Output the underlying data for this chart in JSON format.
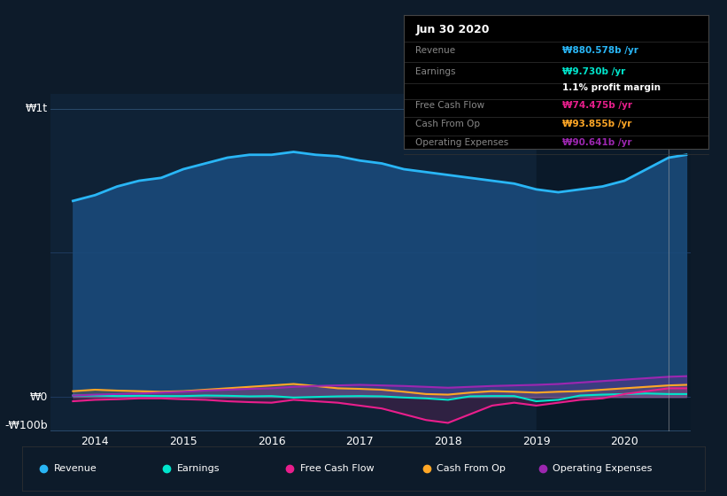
{
  "background_color": "#0d1b2a",
  "plot_bg_color": "#0f2236",
  "plot_bg_dark": "#0a1929",
  "grid_color": "#1e3a5f",
  "title_box_bg": "#000000",
  "title_box_title": "Jun 30 2020",
  "ylabel_1t": "₩1t",
  "ylabel_0": "₩0",
  "ylabel_neg100b": "-₩100b",
  "xlabel_labels": [
    "2014",
    "2015",
    "2016",
    "2017",
    "2018",
    "2019",
    "2020"
  ],
  "xmin": 2013.5,
  "xmax": 2020.75,
  "ymin": -120,
  "ymax": 1050,
  "revenue_color": "#29b6f6",
  "earnings_color": "#00e5cc",
  "fcf_color": "#e91e8c",
  "cashfromop_color": "#ffa726",
  "opex_color": "#9c27b0",
  "revenue_fill_color": "#1a4a7a",
  "legend_items": [
    "Revenue",
    "Earnings",
    "Free Cash Flow",
    "Cash From Op",
    "Operating Expenses"
  ],
  "legend_colors": [
    "#29b6f6",
    "#00e5cc",
    "#e91e8c",
    "#ffa726",
    "#9c27b0"
  ],
  "tooltip_revenue_color": "#29b6f6",
  "tooltip_earnings_color": "#00e5cc",
  "tooltip_fcf_color": "#e91e8c",
  "tooltip_cashop_color": "#ffa726",
  "tooltip_opex_color": "#9c27b0",
  "revenue_x": [
    2013.75,
    2014.0,
    2014.25,
    2014.5,
    2014.75,
    2015.0,
    2015.25,
    2015.5,
    2015.75,
    2016.0,
    2016.25,
    2016.5,
    2016.75,
    2017.0,
    2017.25,
    2017.5,
    2017.75,
    2018.0,
    2018.25,
    2018.5,
    2018.75,
    2019.0,
    2019.25,
    2019.5,
    2019.75,
    2020.0,
    2020.25,
    2020.5,
    2020.7
  ],
  "revenue_y": [
    680,
    700,
    730,
    750,
    760,
    790,
    810,
    830,
    840,
    840,
    850,
    840,
    835,
    820,
    810,
    790,
    780,
    770,
    760,
    750,
    740,
    720,
    710,
    720,
    730,
    750,
    790,
    830,
    840
  ],
  "earnings_x": [
    2013.75,
    2014.0,
    2014.25,
    2014.5,
    2014.75,
    2015.0,
    2015.25,
    2015.5,
    2015.75,
    2016.0,
    2016.25,
    2016.5,
    2016.75,
    2017.0,
    2017.25,
    2017.5,
    2017.75,
    2018.0,
    2018.25,
    2018.5,
    2018.75,
    2019.0,
    2019.25,
    2019.5,
    2019.75,
    2020.0,
    2020.25,
    2020.5,
    2020.7
  ],
  "earnings_y": [
    5,
    5,
    3,
    4,
    3,
    3,
    5,
    4,
    2,
    3,
    -2,
    0,
    2,
    3,
    2,
    -2,
    -5,
    -10,
    2,
    3,
    3,
    -15,
    -10,
    5,
    8,
    10,
    12,
    10,
    10
  ],
  "fcf_x": [
    2013.75,
    2014.0,
    2014.25,
    2014.5,
    2014.75,
    2015.0,
    2015.25,
    2015.5,
    2015.75,
    2016.0,
    2016.25,
    2016.5,
    2016.75,
    2017.0,
    2017.25,
    2017.5,
    2017.75,
    2018.0,
    2018.25,
    2018.5,
    2018.75,
    2019.0,
    2019.25,
    2019.5,
    2019.75,
    2020.0,
    2020.25,
    2020.5,
    2020.7
  ],
  "fcf_y": [
    -15,
    -10,
    -8,
    -5,
    -5,
    -8,
    -10,
    -15,
    -18,
    -20,
    -10,
    -15,
    -20,
    -30,
    -40,
    -60,
    -80,
    -90,
    -60,
    -30,
    -20,
    -30,
    -20,
    -10,
    -5,
    10,
    20,
    30,
    30
  ],
  "cashfromop_x": [
    2013.75,
    2014.0,
    2014.25,
    2014.5,
    2014.75,
    2015.0,
    2015.25,
    2015.5,
    2015.75,
    2016.0,
    2016.25,
    2016.5,
    2016.75,
    2017.0,
    2017.25,
    2017.5,
    2017.75,
    2018.0,
    2018.25,
    2018.5,
    2018.75,
    2019.0,
    2019.25,
    2019.5,
    2019.75,
    2020.0,
    2020.25,
    2020.5,
    2020.7
  ],
  "cashfromop_y": [
    20,
    25,
    22,
    20,
    18,
    20,
    25,
    30,
    35,
    40,
    45,
    38,
    30,
    28,
    25,
    18,
    10,
    8,
    15,
    20,
    18,
    15,
    18,
    20,
    25,
    30,
    35,
    40,
    42
  ],
  "opex_x": [
    2013.75,
    2014.0,
    2014.25,
    2014.5,
    2014.75,
    2015.0,
    2015.25,
    2015.5,
    2015.75,
    2016.0,
    2016.25,
    2016.5,
    2016.75,
    2017.0,
    2017.25,
    2017.5,
    2017.75,
    2018.0,
    2018.25,
    2018.5,
    2018.75,
    2019.0,
    2019.25,
    2019.5,
    2019.75,
    2020.0,
    2020.25,
    2020.5,
    2020.7
  ],
  "opex_y": [
    5,
    8,
    10,
    12,
    15,
    18,
    22,
    25,
    28,
    30,
    35,
    38,
    40,
    42,
    40,
    38,
    35,
    32,
    35,
    38,
    40,
    42,
    45,
    50,
    55,
    60,
    65,
    70,
    72
  ],
  "highlight_x_start": 2019.0,
  "vertical_line_x": 2020.5,
  "dpi": 100,
  "figw": 8.21,
  "figh": 5.6
}
